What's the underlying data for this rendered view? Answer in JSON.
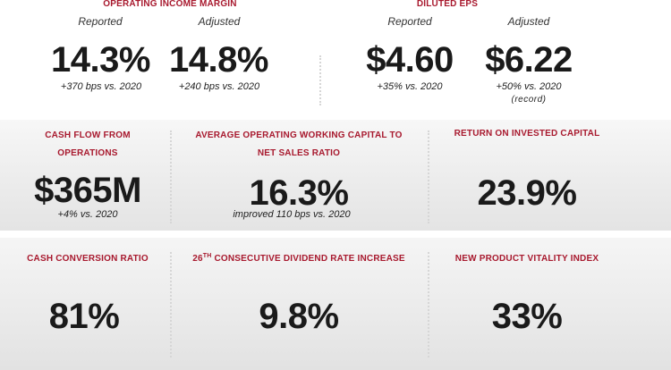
{
  "row1": {
    "operating_margin": {
      "title": "OPERATING INCOME MARGIN",
      "reported_label": "Reported",
      "adjusted_label": "Adjusted",
      "reported_value": "14.3%",
      "adjusted_value": "14.8%",
      "reported_note": "+370 bps vs. 2020",
      "adjusted_note": "+240 bps vs. 2020"
    },
    "diluted_eps": {
      "title": "DILUTED EPS",
      "reported_label": "Reported",
      "adjusted_label": "Adjusted",
      "reported_value": "$4.60",
      "adjusted_value": "$6.22",
      "reported_note": "+35% vs. 2020",
      "adjusted_note": "+50% vs. 2020",
      "adjusted_note2": "(record)"
    }
  },
  "row2": {
    "cash_flow": {
      "title_line1": "CASH FLOW FROM",
      "title_line2": "OPERATIONS",
      "value": "$365M",
      "note": "+4% vs. 2020"
    },
    "working_capital": {
      "title_line1": "AVERAGE OPERATING WORKING CAPITAL TO",
      "title_line2": "NET SALES RATIO",
      "value": "16.3%",
      "note": "improved 110 bps vs. 2020"
    },
    "roic": {
      "title": "RETURN ON INVESTED CAPITAL",
      "value": "23.9%"
    }
  },
  "row3": {
    "cash_conversion": {
      "title": "CASH CONVERSION RATIO",
      "value": "81%"
    },
    "dividend": {
      "title_prefix": "26",
      "title_sup": "TH",
      "title_rest": " CONSECUTIVE DIVIDEND RATE INCREASE",
      "value": "9.8%"
    },
    "vitality": {
      "title": "NEW PRODUCT VITALITY INDEX",
      "value": "33%"
    }
  }
}
